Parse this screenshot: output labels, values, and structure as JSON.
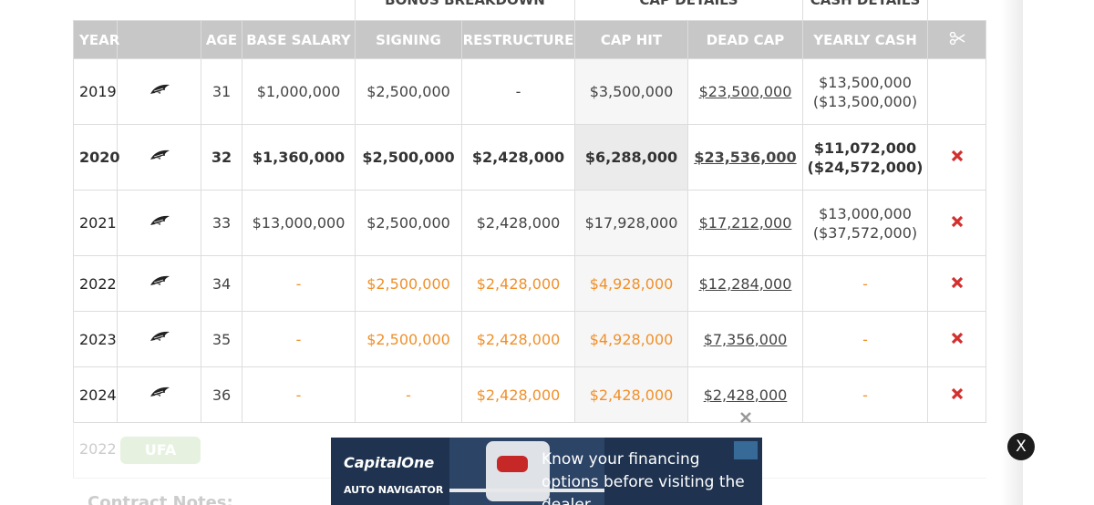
{
  "group_headers": [
    "BONUS BREAKDOWN",
    "CAP DETAILS",
    "CASH DETAILS"
  ],
  "columns": [
    "YEAR",
    "AGE",
    "BASE SALARY",
    "SIGNING",
    "RESTRUCTURE",
    "CAP HIT",
    "DEAD CAP",
    "YEARLY CASH"
  ],
  "rows": [
    {
      "year": "2019",
      "age": "31",
      "base_salary": "$1,000,000",
      "signing": "$2,500,000",
      "restructure": "-",
      "cap_hit": "$3,500,000",
      "dead_cap": "$23,500,000",
      "yearly_cash": [
        "$13,500,000",
        "($13,500,000)"
      ]
    },
    {
      "year": "2020",
      "age": "32",
      "base_salary": "$1,360,000",
      "signing": "$2,500,000",
      "restructure": "$2,428,000",
      "cap_hit": "$6,288,000",
      "dead_cap": "$23,536,000",
      "yearly_cash": [
        "$11,072,000",
        "($24,572,000)"
      ]
    },
    {
      "year": "2021",
      "age": "33",
      "base_salary": "$13,000,000",
      "signing": "$2,500,000",
      "restructure": "$2,428,000",
      "cap_hit": "$17,928,000",
      "dead_cap": "$17,212,000",
      "yearly_cash": [
        "$13,000,000",
        "($37,572,000)"
      ]
    },
    {
      "year": "2022",
      "age": "34",
      "base_salary": "-",
      "signing": "$2,500,000",
      "restructure": "$2,428,000",
      "cap_hit": "$4,928,000",
      "dead_cap": "$12,284,000",
      "yearly_cash": [
        "-"
      ]
    },
    {
      "year": "2023",
      "age": "35",
      "base_salary": "-",
      "signing": "$2,500,000",
      "restructure": "$2,428,000",
      "cap_hit": "$4,928,000",
      "dead_cap": "$7,356,000",
      "yearly_cash": [
        "-"
      ]
    },
    {
      "year": "2024",
      "age": "36",
      "base_salary": "-",
      "signing": "-",
      "restructure": "$2,428,000",
      "cap_hit": "$2,428,000",
      "dead_cap": "$2,428,000",
      "yearly_cash": [
        "-"
      ]
    }
  ],
  "future_row": {
    "year": "2022",
    "status": "UFA"
  },
  "notes_heading": "Contract Notes:",
  "ad": {
    "brand": "CapitalOne",
    "sub": "AUTO NAVIGATOR",
    "text": "Know your financing options before visiting the dealer."
  },
  "close_button": "X"
}
